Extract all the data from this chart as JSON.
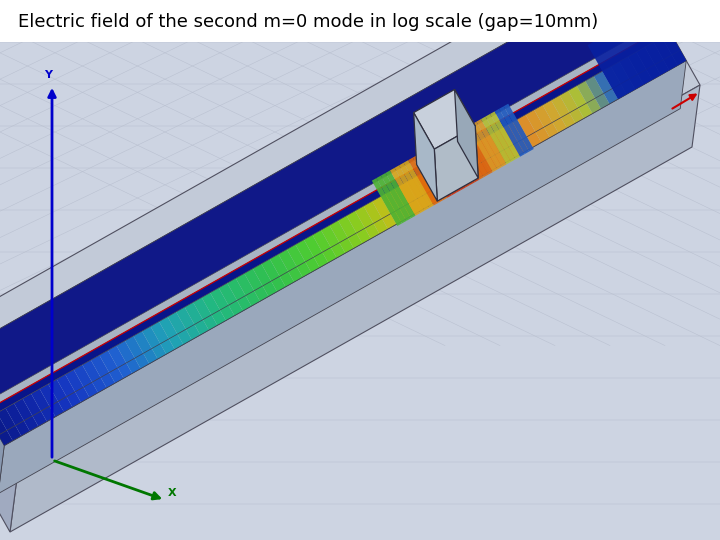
{
  "title": "Electric field of the second m=0 mode in log scale (gap=10mm)",
  "title_fontsize": 13,
  "bg_color": "#cdd4e2",
  "grid_color": "#b8bfcf",
  "outer_box_top": "#c2cad8",
  "outer_box_side": "#a0aac0",
  "outer_box_front": "#b0baca",
  "inner_slab_color": "#9daabf",
  "field_colors": {
    "dark_blue": "#0a1a8a",
    "blue": "#1535c0",
    "med_blue": "#2060d0",
    "cyan_blue": "#20a0c0",
    "cyan_green": "#20b888",
    "green": "#30c050",
    "yellow_green": "#88cc20",
    "yellow": "#d4c010",
    "orange": "#e07820",
    "dark_orange": "#d84010",
    "red_orange": "#cc2808",
    "orange2": "#e06820",
    "yellow2": "#d4a820",
    "light_blue": "#2878c8",
    "end_blue": "#0a28a0"
  }
}
